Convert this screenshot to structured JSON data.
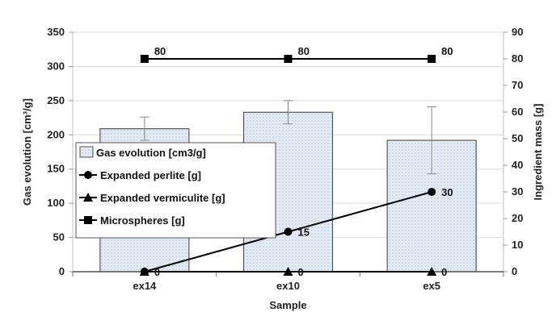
{
  "chart_data": {
    "type": "bar",
    "categories": [
      "ex14",
      "ex10",
      "ex5"
    ],
    "xlabel": "Sample",
    "ylabel": "Gas evolution [cm³/g]",
    "y2label": "Ingredient  mass [g]",
    "ylim": [
      0,
      350
    ],
    "y2lim": [
      0,
      90
    ],
    "yticks": [
      0,
      50,
      100,
      150,
      200,
      250,
      300,
      350
    ],
    "y2ticks": [
      0,
      10,
      20,
      30,
      40,
      50,
      60,
      70,
      80,
      90
    ],
    "grid": true,
    "legend_position": "left",
    "series": [
      {
        "name": "Gas evolution [cm3/g]",
        "kind": "bar",
        "axis": "left",
        "values": [
          209,
          233,
          192
        ],
        "error": [
          17,
          17,
          49
        ]
      },
      {
        "name": "Expanded perlite [g]",
        "kind": "line",
        "marker": "circle",
        "axis": "right",
        "values": [
          0,
          15,
          30
        ],
        "labels": [
          "",
          "15",
          "30"
        ]
      },
      {
        "name": "Expanded vermiculite [g]",
        "kind": "line",
        "marker": "triangle",
        "axis": "right",
        "values": [
          0,
          0,
          0
        ],
        "labels": [
          "0",
          "0",
          "0"
        ]
      },
      {
        "name": "Microspheres [g]",
        "kind": "line",
        "marker": "square",
        "axis": "right",
        "values": [
          80,
          80,
          80
        ],
        "labels": [
          "80",
          "80",
          "80"
        ]
      }
    ],
    "colors": {
      "bar_fill": "#e4ebf5",
      "bar_stroke": "#555555",
      "line": "#000000",
      "grid": "#d9d9d9",
      "error_bar": "#888888"
    }
  }
}
